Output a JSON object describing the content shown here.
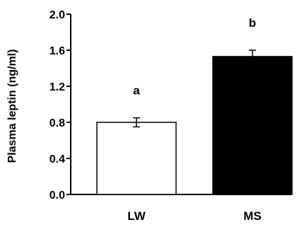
{
  "chart_data": {
    "type": "bar",
    "categories": [
      "LW",
      "MS"
    ],
    "values": [
      0.8,
      1.53
    ],
    "errors": [
      0.05,
      0.07
    ],
    "annotations": [
      "a",
      "b"
    ],
    "bar_fill": [
      "#ffffff",
      "#000000"
    ],
    "bar_stroke": "#000000",
    "ylabel": "Plasma leptin (ng/ml)",
    "xlabel": "",
    "ylim": [
      0.0,
      2.0
    ],
    "yticks": [
      "0.0",
      "0.4",
      "0.8",
      "1.2",
      "1.6",
      "2.0"
    ],
    "ytick_values": [
      0.0,
      0.4,
      0.8,
      1.2,
      1.6,
      2.0
    ],
    "grid": false,
    "legend": "none"
  }
}
